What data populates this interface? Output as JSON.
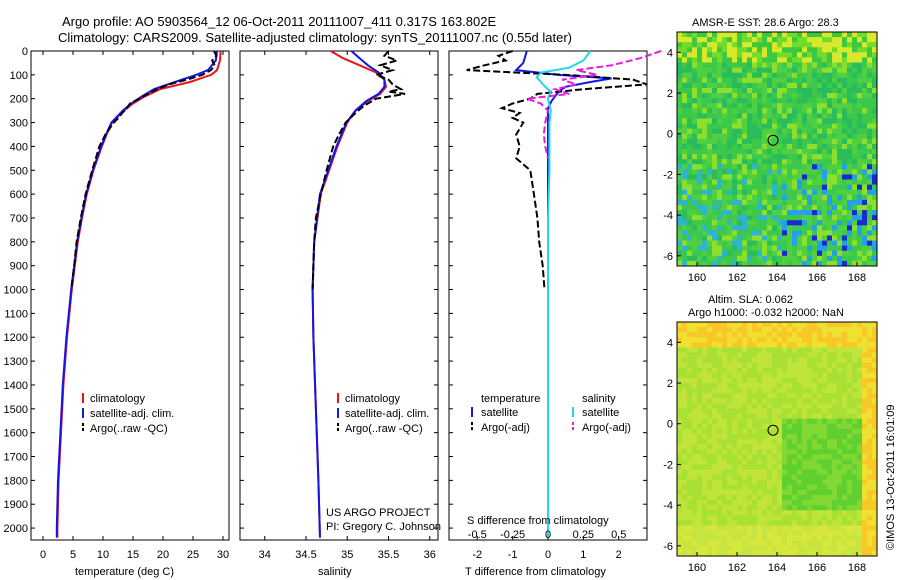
{
  "header": {
    "title_line1": "Argo profile: AO 5903564_12 06-Oct-2011 20111007_411 0.317S 163.802E",
    "title_line2": "Climatology: CARS2009. Satellite-adjusted climatology: synTS_20111007.nc (0.55d later)"
  },
  "colors": {
    "climatology": "#e8141c",
    "satellite": "#1414e6",
    "argo": "#000000",
    "sat_salinity": "#20d8e8",
    "argo_salinity": "#e020e0"
  },
  "depth_axis": {
    "ylim": [
      0,
      2050
    ],
    "ticks": [
      0,
      100,
      200,
      300,
      400,
      500,
      600,
      700,
      800,
      900,
      1000,
      1100,
      1200,
      1300,
      1400,
      1500,
      1600,
      1700,
      1800,
      1900,
      2000
    ],
    "tick_labels": [
      "0",
      "100",
      "200",
      "300",
      "400",
      "500",
      "600",
      "700",
      "800",
      "900",
      "1000",
      "1100",
      "1200",
      "1300",
      "1400",
      "1500",
      "1600",
      "1700",
      "1800",
      "1900",
      "2000"
    ]
  },
  "chart_data": [
    {
      "type": "line",
      "panel": "temperature",
      "xlabel": "temperature (deg C)",
      "xlim": [
        -2,
        31
      ],
      "x_ticks": [
        0,
        5,
        10,
        15,
        20,
        25,
        30
      ],
      "x_tick_labels": [
        "0",
        "5",
        "10",
        "15",
        "20",
        "25",
        "30"
      ],
      "legend": [
        "climatology",
        "satellite-adj. clim.",
        "Argo(..raw -QC)"
      ],
      "series": [
        {
          "name": "climatology",
          "color_key": "climatology",
          "dashed": false,
          "depth": [
            0,
            40,
            80,
            100,
            130,
            160,
            190,
            220,
            250,
            300,
            350,
            400,
            500,
            600,
            700,
            800,
            900,
            1000,
            1200,
            1400,
            1600,
            1800,
            2000,
            2040
          ],
          "values": [
            29.6,
            29.5,
            29.0,
            28.0,
            24.5,
            19.5,
            17.0,
            15.0,
            13.5,
            11.5,
            10.6,
            9.8,
            8.4,
            7.3,
            6.5,
            5.8,
            5.3,
            4.8,
            4.0,
            3.4,
            3.0,
            2.6,
            2.4,
            2.4
          ]
        },
        {
          "name": "satellite-adj. clim.",
          "color_key": "satellite",
          "dashed": false,
          "depth": [
            0,
            40,
            80,
            100,
            130,
            160,
            190,
            220,
            250,
            300,
            350,
            400,
            500,
            600,
            700,
            800,
            900,
            1000,
            1200,
            1400,
            1600,
            1800,
            2000,
            2040
          ],
          "values": [
            29.0,
            28.8,
            27.5,
            25.5,
            22.0,
            18.5,
            16.5,
            14.7,
            13.3,
            11.4,
            10.5,
            9.7,
            8.3,
            7.2,
            6.4,
            5.7,
            5.2,
            4.7,
            3.9,
            3.3,
            2.9,
            2.5,
            2.3,
            2.3
          ]
        },
        {
          "name": "Argo(..raw -QC)",
          "color_key": "argo",
          "dashed": true,
          "depth": [
            0,
            20,
            40,
            60,
            80,
            100,
            120,
            140,
            160,
            180,
            200,
            220,
            240,
            260,
            280,
            300,
            350,
            400,
            500,
            600,
            700,
            800,
            900,
            1000
          ],
          "values": [
            28.5,
            28.9,
            28.2,
            28.6,
            28.0,
            26.5,
            24.0,
            21.0,
            19.0,
            17.5,
            16.0,
            14.5,
            14.0,
            13.2,
            12.6,
            11.8,
            10.4,
            9.4,
            8.2,
            7.1,
            6.3,
            5.6,
            5.2,
            4.7
          ]
        }
      ]
    },
    {
      "type": "line",
      "panel": "salinity",
      "xlabel": "salinity",
      "xlim": [
        33.7,
        36.1
      ],
      "x_ticks": [
        34,
        34.5,
        35,
        35.5,
        36
      ],
      "x_tick_labels": [
        "34",
        "34.5",
        "35",
        "35.5",
        "36"
      ],
      "legend": [
        "climatology",
        "satellite-adj. clim.",
        "Argo(..raw -QC)"
      ],
      "annotation": [
        "US ARGO PROJECT",
        "PI: Gregory C. Johnson"
      ],
      "series": [
        {
          "name": "climatology",
          "color_key": "climatology",
          "dashed": false,
          "depth": [
            0,
            30,
            60,
            90,
            120,
            150,
            180,
            210,
            250,
            300,
            400,
            500,
            600,
            800,
            1000,
            1200,
            1500,
            1800,
            2040
          ],
          "values": [
            34.8,
            34.95,
            35.15,
            35.35,
            35.45,
            35.47,
            35.4,
            35.25,
            35.1,
            35.0,
            34.88,
            34.78,
            34.68,
            34.6,
            34.58,
            34.59,
            34.62,
            34.65,
            34.67
          ]
        },
        {
          "name": "satellite-adj. clim.",
          "color_key": "satellite",
          "dashed": false,
          "depth": [
            0,
            30,
            60,
            90,
            120,
            150,
            180,
            210,
            250,
            300,
            400,
            500,
            600,
            800,
            1000,
            1200,
            1500,
            1800,
            2040
          ],
          "values": [
            35.05,
            35.15,
            35.25,
            35.38,
            35.45,
            35.45,
            35.38,
            35.23,
            35.1,
            34.99,
            34.87,
            34.77,
            34.67,
            34.6,
            34.58,
            34.59,
            34.62,
            34.65,
            34.67
          ]
        },
        {
          "name": "Argo(..raw -QC)",
          "color_key": "argo",
          "dashed": true,
          "depth": [
            0,
            20,
            40,
            60,
            80,
            100,
            120,
            140,
            160,
            170,
            180,
            200,
            230,
            260,
            300,
            350,
            400,
            500,
            600,
            700,
            800,
            900,
            1000
          ],
          "values": [
            35.5,
            35.45,
            35.6,
            35.4,
            35.55,
            35.35,
            35.5,
            35.55,
            35.65,
            35.5,
            35.7,
            35.35,
            35.2,
            35.1,
            34.98,
            34.9,
            34.83,
            34.75,
            34.68,
            34.62,
            34.6,
            34.59,
            34.58
          ]
        }
      ]
    },
    {
      "type": "line",
      "panel": "difference",
      "xlabel": "T difference from climatology",
      "xlim": [
        -2.8,
        2.8
      ],
      "x_ticks": [
        -2,
        -1,
        0,
        1,
        2
      ],
      "x_tick_labels": [
        "-2",
        "-1",
        "0",
        "1",
        "2"
      ],
      "top_axis_label": "S difference from climatology",
      "top_ticks": [
        -0.5,
        -0.25,
        0,
        0.25,
        0.5
      ],
      "top_tick_labels": [
        "-0.5",
        "-0.25",
        "0",
        "0.25",
        "0.5"
      ],
      "legend_titles": [
        "temperature",
        "salinity"
      ],
      "legend": [
        "satellite",
        "Argo(-adj)",
        "satellite",
        "Argo(-adj)"
      ],
      "series": [
        {
          "name": "temperature satellite",
          "color_key": "satellite",
          "dashed": false,
          "depth": [
            0,
            50,
            80,
            100,
            115,
            130,
            150,
            170,
            190,
            210,
            240,
            280,
            350,
            500,
            800,
            1100,
            1500,
            1800,
            2040
          ],
          "values": [
            -0.6,
            -0.7,
            -0.9,
            0.3,
            1.8,
            1.2,
            0.5,
            0.3,
            0.2,
            0.1,
            0.0,
            0.0,
            0.0,
            0.0,
            0.0,
            0.0,
            0.0,
            0.0,
            0.0
          ]
        },
        {
          "name": "temperature Argo(-adj)",
          "color_key": "argo",
          "dashed": true,
          "depth": [
            0,
            20,
            40,
            60,
            80,
            100,
            120,
            140,
            160,
            180,
            200,
            220,
            240,
            260,
            280,
            300,
            350,
            400,
            450,
            500,
            600,
            700,
            800,
            900,
            1000
          ],
          "values": [
            -1.0,
            -1.4,
            -1.2,
            -1.8,
            -2.3,
            0.5,
            2.4,
            2.8,
            1.0,
            -0.3,
            -0.5,
            -1.0,
            -1.3,
            -0.8,
            -1.0,
            -0.7,
            -0.9,
            -0.8,
            -0.9,
            -0.5,
            -0.4,
            -0.3,
            -0.25,
            -0.15,
            -0.1
          ]
        },
        {
          "name": "salinity satellite",
          "color_key": "sat_salinity",
          "dashed": false,
          "depth": [
            0,
            40,
            70,
            90,
            110,
            130,
            150,
            170,
            200,
            250,
            300,
            400,
            500,
            700,
            900,
            1200,
            1500,
            1800,
            2040
          ],
          "values": [
            0.3,
            0.25,
            0.15,
            -0.05,
            -0.08,
            -0.05,
            -0.02,
            0.02,
            0.0,
            0.02,
            0.01,
            0.01,
            0.01,
            0.0,
            0.0,
            0.0,
            0.0,
            0.0,
            0.0
          ]
        },
        {
          "name": "salinity Argo(-adj)",
          "color_key": "argo_salinity",
          "dashed": true,
          "depth": [
            0,
            30,
            60,
            80,
            100,
            120,
            140,
            160,
            180,
            200,
            220,
            250,
            300,
            350,
            400,
            450
          ],
          "values": [
            0.8,
            0.65,
            0.45,
            0.2,
            0.35,
            0.1,
            0.2,
            0.05,
            0.15,
            -0.15,
            -0.05,
            0.0,
            -0.02,
            -0.03,
            -0.02,
            0.0
          ]
        }
      ]
    },
    {
      "type": "heatmap",
      "panel": "sst_map",
      "title": "AMSR-E SST: 28.6 Argo: 28.3",
      "xlim": [
        159,
        169
      ],
      "ylim": [
        -6.5,
        5
      ],
      "x_ticks": [
        160,
        162,
        164,
        166,
        168
      ],
      "x_tick_labels": [
        "160",
        "162",
        "164",
        "166",
        "168"
      ],
      "y_ticks": [
        4,
        2,
        0,
        -2,
        -4,
        -6
      ],
      "y_tick_labels": [
        "4",
        "2",
        "0",
        "-2",
        "-4",
        "-6"
      ],
      "marker": {
        "lon": 163.802,
        "lat": -0.317
      }
    },
    {
      "type": "heatmap",
      "panel": "sla_map",
      "title_line1": "Altim. SLA: 0.062",
      "title_line2": "Argo h1000: -0.032 h2000: NaN",
      "xlim": [
        159,
        169
      ],
      "ylim": [
        -6.5,
        5
      ],
      "x_ticks": [
        160,
        162,
        164,
        166,
        168
      ],
      "x_tick_labels": [
        "160",
        "162",
        "164",
        "166",
        "168"
      ],
      "y_ticks": [
        4,
        2,
        0,
        -2,
        -4,
        -6
      ],
      "y_tick_labels": [
        "4",
        "2",
        "0",
        "-2",
        "-4",
        "-6"
      ],
      "marker": {
        "lon": 163.802,
        "lat": -0.317
      }
    }
  ],
  "footer": {
    "vertical_text": "©IMOS 13-Oct-2011 16:01:09"
  }
}
